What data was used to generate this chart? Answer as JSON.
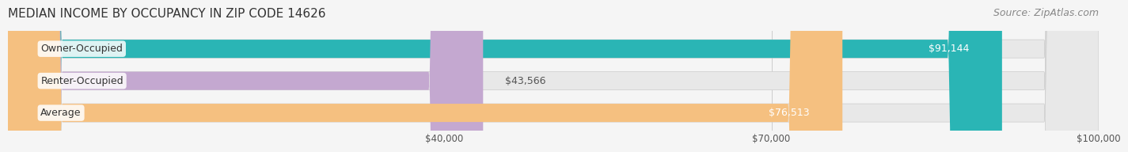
{
  "title": "MEDIAN INCOME BY OCCUPANCY IN ZIP CODE 14626",
  "source": "Source: ZipAtlas.com",
  "categories": [
    "Owner-Occupied",
    "Renter-Occupied",
    "Average"
  ],
  "values": [
    91144,
    43566,
    76513
  ],
  "labels": [
    "$91,144",
    "$43,566",
    "$76,513"
  ],
  "bar_colors": [
    "#2ab5b5",
    "#c4a8d0",
    "#f5c080"
  ],
  "bar_edge_colors": [
    "#2ab5b5",
    "#c4a8d0",
    "#f5c080"
  ],
  "bg_color": "#f5f5f5",
  "bar_bg_color": "#e8e8e8",
  "xmin": 0,
  "xmax": 100000,
  "xticks": [
    40000,
    70000,
    100000
  ],
  "xticklabels": [
    "$40,000",
    "$70,000",
    "$100,000"
  ],
  "title_fontsize": 11,
  "source_fontsize": 9,
  "label_fontsize": 9,
  "bar_height": 0.55
}
